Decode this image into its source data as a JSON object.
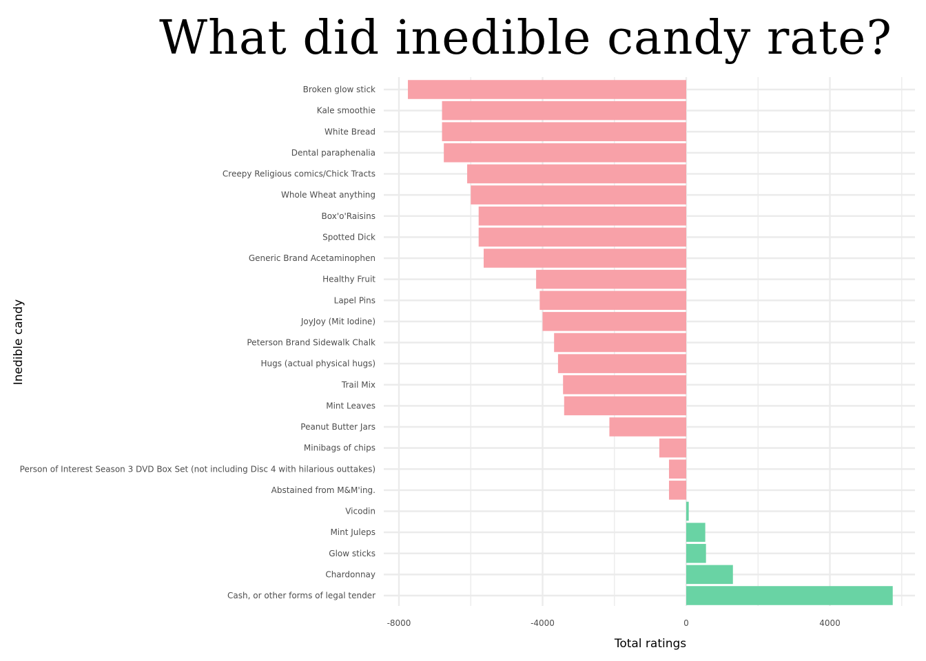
{
  "chart_data": {
    "type": "bar",
    "orientation": "horizontal",
    "title": "What did inedible candy rate?",
    "xlabel": "Total ratings",
    "ylabel": "Inedible candy",
    "xlim": [
      -8000,
      6400
    ],
    "xticks": [
      -8000,
      -4000,
      0,
      4000
    ],
    "grid": true,
    "legend": "none",
    "colors": {
      "negative": "#F8A1A8",
      "positive": "#69D3A4",
      "grid": "#EBEBEB",
      "title": "#000000",
      "tick_text": "#4D4D4D"
    },
    "categories": [
      "Broken glow stick",
      "Kale smoothie",
      "White Bread",
      "Dental paraphenalia",
      "Creepy Religious comics/Chick Tracts",
      "Whole Wheat anything",
      "Box'o'Raisins",
      "Spotted Dick",
      "Generic Brand Acetaminophen",
      "Healthy Fruit",
      "Lapel Pins",
      "JoyJoy (Mit Iodine)",
      "Peterson Brand Sidewalk Chalk",
      "Hugs (actual physical hugs)",
      "Trail Mix",
      "Mint Leaves",
      "Peanut Butter Jars",
      "Minibags of chips",
      "Person of Interest Season 3 DVD Box Set (not including Disc 4 with hilarious outtakes)",
      "Abstained from M&M'ing.",
      "Vicodin",
      "Mint Juleps",
      "Glow sticks",
      "Chardonnay",
      "Cash, or other forms of legal tender"
    ],
    "values": [
      -7750,
      -6800,
      -6800,
      -6750,
      -6100,
      -6000,
      -5780,
      -5780,
      -5640,
      -4180,
      -4080,
      -4000,
      -3680,
      -3570,
      -3430,
      -3400,
      -2140,
      -750,
      -480,
      -480,
      70,
      530,
      550,
      1300,
      5750
    ]
  }
}
